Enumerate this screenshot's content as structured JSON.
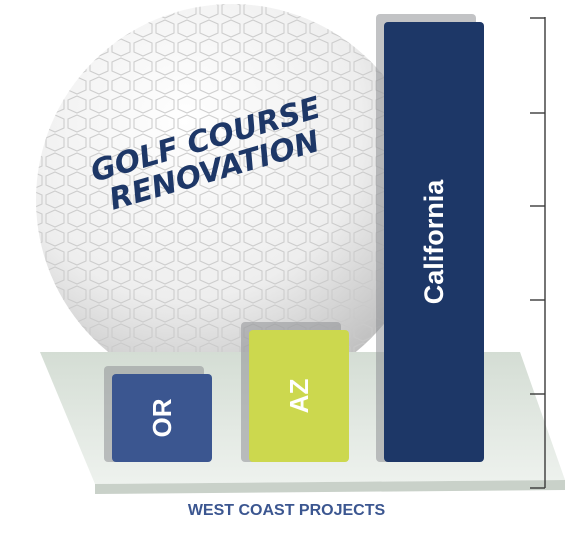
{
  "chart_data": {
    "type": "bar",
    "title": "GOLF COURSE RENOVATION",
    "title_lines": [
      "GOLF COURSE",
      "RENOVATION"
    ],
    "xlabel": "WEST COAST PROJECTS",
    "ylabel": "",
    "categories": [
      "OR",
      "AZ",
      "California"
    ],
    "values": [
      1,
      1.5,
      5
    ],
    "ylim": [
      0,
      5
    ],
    "grid": false,
    "legend": "none",
    "colors": {
      "OR": "#3b5690",
      "AZ": "#ccd84e",
      "California": "#1d3767",
      "shadow": "#8f9196",
      "axis": "#3a3a3a",
      "title": "#1d3767",
      "xlabel": "#3b5690",
      "platform": "#dfe7df"
    }
  }
}
